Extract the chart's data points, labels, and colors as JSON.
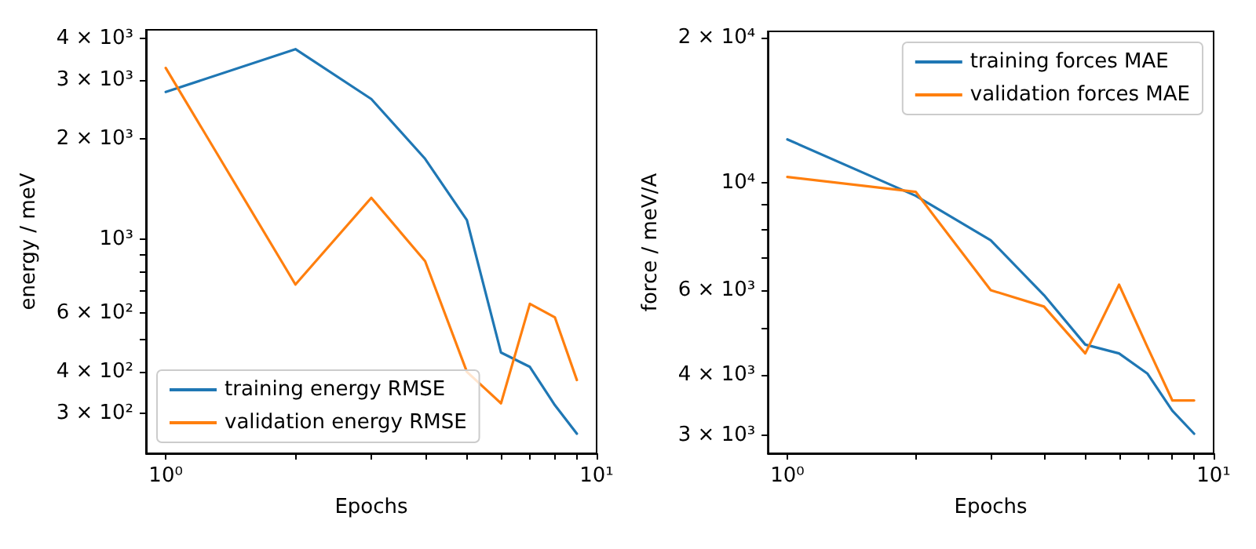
{
  "chart_data": [
    {
      "type": "line",
      "xlabel": "Epochs",
      "ylabel": "energy / meV",
      "log": "xy",
      "legend": "bottom left",
      "grid": false,
      "x": [
        1,
        2,
        3,
        4,
        5,
        6,
        7,
        8,
        9
      ],
      "xlim": [
        0.9,
        10
      ],
      "xticks": [
        {
          "value": 1,
          "label": "10⁰"
        },
        {
          "value": 2,
          "label": null
        },
        {
          "value": 3,
          "label": null
        },
        {
          "value": 4,
          "label": null
        },
        {
          "value": 5,
          "label": null
        },
        {
          "value": 6,
          "label": null
        },
        {
          "value": 7,
          "label": null
        },
        {
          "value": 8,
          "label": null
        },
        {
          "value": 9,
          "label": null
        },
        {
          "value": 10,
          "label": "10¹"
        }
      ],
      "ylim": [
        228,
        4240
      ],
      "yticks": [
        {
          "value": 300,
          "label": "3 × 10²"
        },
        {
          "value": 400,
          "label": "4 × 10²"
        },
        {
          "value": 500,
          "label": null
        },
        {
          "value": 600,
          "label": "6 × 10²"
        },
        {
          "value": 700,
          "label": null
        },
        {
          "value": 800,
          "label": null
        },
        {
          "value": 900,
          "label": null
        },
        {
          "value": 1000,
          "label": "10³"
        },
        {
          "value": 2000,
          "label": "2 × 10³"
        },
        {
          "value": 3000,
          "label": "3 × 10³"
        },
        {
          "value": 4000,
          "label": "4 × 10³"
        }
      ],
      "series": [
        {
          "name": "training energy RMSE",
          "color": "#1f77b4",
          "values": [
            2760,
            3710,
            2630,
            1740,
            1140,
            457,
            414,
            318,
            261
          ]
        },
        {
          "name": "validation energy RMSE",
          "color": "#ff7f0e",
          "values": [
            3260,
            731,
            1330,
            859,
            400,
            322,
            640,
            583,
            378
          ]
        }
      ]
    },
    {
      "type": "line",
      "xlabel": "Epochs",
      "ylabel": "force / meV/A",
      "log": "xy",
      "legend": "top right",
      "grid": false,
      "x": [
        1,
        2,
        3,
        4,
        5,
        6,
        7,
        8,
        9
      ],
      "xlim": [
        0.9,
        10
      ],
      "xticks": [
        {
          "value": 1,
          "label": "10⁰"
        },
        {
          "value": 2,
          "label": null
        },
        {
          "value": 3,
          "label": null
        },
        {
          "value": 4,
          "label": null
        },
        {
          "value": 5,
          "label": null
        },
        {
          "value": 6,
          "label": null
        },
        {
          "value": 7,
          "label": null
        },
        {
          "value": 8,
          "label": null
        },
        {
          "value": 9,
          "label": null
        },
        {
          "value": 10,
          "label": "10¹"
        }
      ],
      "ylim": [
        2750,
        20600
      ],
      "yticks": [
        {
          "value": 3000,
          "label": "3 × 10³"
        },
        {
          "value": 4000,
          "label": "4 × 10³"
        },
        {
          "value": 5000,
          "label": null
        },
        {
          "value": 6000,
          "label": "6 × 10³"
        },
        {
          "value": 7000,
          "label": null
        },
        {
          "value": 8000,
          "label": null
        },
        {
          "value": 9000,
          "label": null
        },
        {
          "value": 10000,
          "label": "10⁴"
        },
        {
          "value": 20000,
          "label": "2 × 10⁴"
        }
      ],
      "series": [
        {
          "name": "training forces MAE",
          "color": "#1f77b4",
          "values": [
            12300,
            9400,
            7600,
            5850,
            4620,
            4430,
            4020,
            3370,
            3020
          ]
        },
        {
          "name": "validation forces MAE",
          "color": "#ff7f0e",
          "values": [
            10280,
            9580,
            5990,
            5540,
            4430,
            6150,
            4560,
            3540,
            3540
          ]
        }
      ]
    }
  ]
}
